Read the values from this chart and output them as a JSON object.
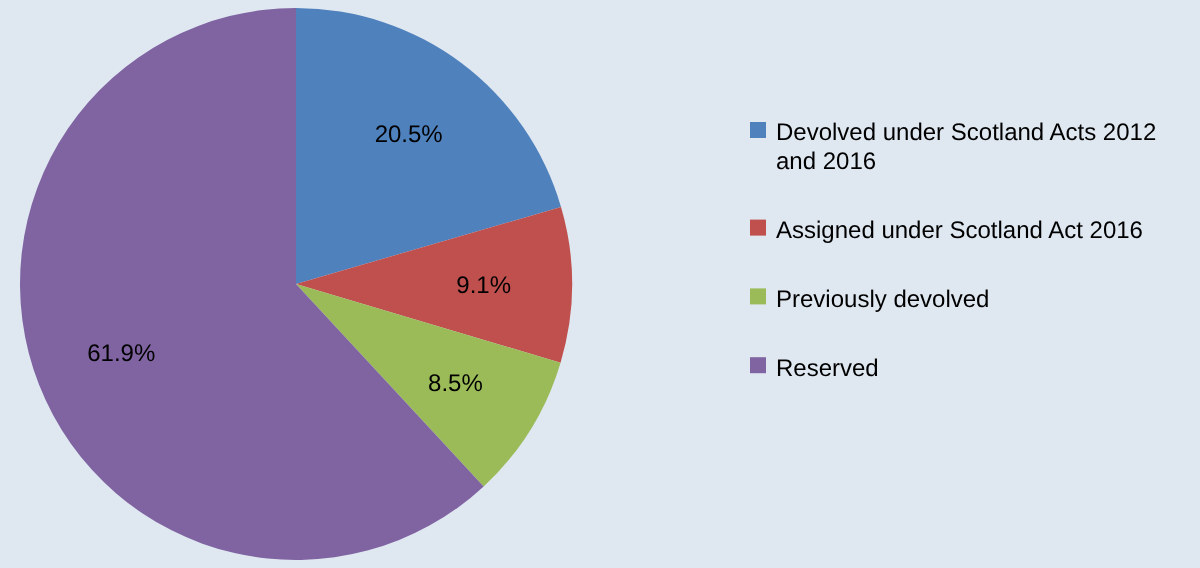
{
  "chart_data": {
    "type": "pie",
    "categories": [
      "Devolved under Scotland Acts 2012 and 2016",
      "Assigned under Scotland Act 2016",
      "Previously devolved",
      "Reserved"
    ],
    "values": [
      20.5,
      9.1,
      8.5,
      61.9
    ],
    "colors": [
      "#4f81bd",
      "#c0504d",
      "#9bbb59",
      "#8064a2"
    ],
    "value_labels": [
      "20.5%",
      "9.1%",
      "8.5%",
      "61.9%"
    ],
    "legend": "right"
  }
}
